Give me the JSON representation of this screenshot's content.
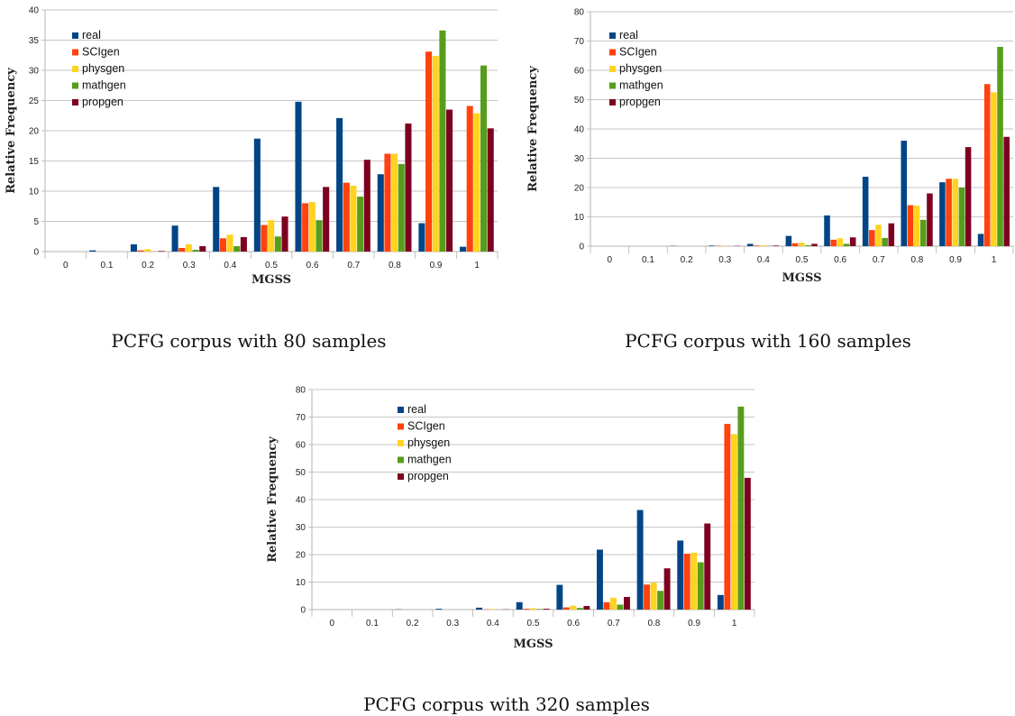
{
  "legend": [
    "real",
    "SCIgen",
    "physgen",
    "mathgen",
    "propgen"
  ],
  "colors": [
    "#004586",
    "#ff420e",
    "#ffd320",
    "#579d1c",
    "#7e0021"
  ],
  "chart_data": [
    {
      "type": "bar",
      "caption": "PCFG corpus with 80 samples",
      "xlabel": "MGSS",
      "ylabel": "Relative Frequency",
      "categories": [
        "0",
        "0.1",
        "0.2",
        "0.3",
        "0.4",
        "0.5",
        "0.6",
        "0.7",
        "0.8",
        "0.9",
        "1"
      ],
      "ylim": [
        0,
        40
      ],
      "yticks": [
        0,
        5,
        10,
        15,
        20,
        25,
        30,
        35,
        40
      ],
      "legend_position": "top-left",
      "series": [
        {
          "name": "real",
          "values": [
            0,
            0.2,
            1.2,
            4.3,
            10.7,
            18.7,
            24.8,
            22.1,
            12.8,
            4.7,
            0.8
          ]
        },
        {
          "name": "SCIgen",
          "values": [
            0,
            0,
            0.2,
            0.6,
            2.2,
            4.4,
            8.0,
            11.4,
            16.2,
            33.1,
            24.1
          ]
        },
        {
          "name": "physgen",
          "values": [
            0,
            0,
            0.4,
            1.2,
            2.8,
            5.2,
            8.2,
            10.9,
            16.2,
            32.4,
            22.9
          ]
        },
        {
          "name": "mathgen",
          "values": [
            0,
            0,
            0,
            0.3,
            0.9,
            2.5,
            5.2,
            9.1,
            14.5,
            36.6,
            30.8
          ]
        },
        {
          "name": "propgen",
          "values": [
            0,
            0,
            0.1,
            0.9,
            2.4,
            5.8,
            10.7,
            15.2,
            21.2,
            23.5,
            20.4
          ]
        }
      ]
    },
    {
      "type": "bar",
      "caption": "PCFG corpus with 160 samples",
      "xlabel": "MGSS",
      "ylabel": "Relative Frequency",
      "categories": [
        "0",
        "0.1",
        "0.2",
        "0.3",
        "0.4",
        "0.5",
        "0.6",
        "0.7",
        "0.8",
        "0.9",
        "1"
      ],
      "ylim": [
        0,
        80
      ],
      "yticks": [
        0,
        10,
        20,
        30,
        40,
        50,
        60,
        70,
        80
      ],
      "legend_position": "top-left",
      "series": [
        {
          "name": "real",
          "values": [
            0,
            0,
            0.1,
            0.2,
            0.8,
            3.5,
            10.5,
            23.7,
            36.0,
            21.8,
            4.2
          ]
        },
        {
          "name": "SCIgen",
          "values": [
            0,
            0,
            0,
            0.1,
            0.2,
            1.0,
            2.2,
            5.5,
            14.0,
            23.0,
            55.3
          ]
        },
        {
          "name": "physgen",
          "values": [
            0,
            0,
            0,
            0.1,
            0.3,
            1.2,
            2.7,
            7.3,
            13.8,
            23.0,
            52.5
          ]
        },
        {
          "name": "mathgen",
          "values": [
            0,
            0,
            0,
            0,
            0.1,
            0.3,
            0.8,
            2.8,
            9.0,
            20.0,
            68.0
          ]
        },
        {
          "name": "propgen",
          "values": [
            0,
            0,
            0,
            0.1,
            0.2,
            0.8,
            3.0,
            7.8,
            18.0,
            33.8,
            37.3
          ]
        }
      ]
    },
    {
      "type": "bar",
      "caption": "PCFG corpus with 320 samples",
      "xlabel": "MGSS",
      "ylabel": "Relative Frequency",
      "categories": [
        "0",
        "0.1",
        "0.2",
        "0.3",
        "0.4",
        "0.5",
        "0.6",
        "0.7",
        "0.8",
        "0.9",
        "1"
      ],
      "ylim": [
        0,
        80
      ],
      "yticks": [
        0,
        10,
        20,
        30,
        40,
        50,
        60,
        70,
        80
      ],
      "legend_position": "top-left",
      "series": [
        {
          "name": "real",
          "values": [
            0,
            0,
            0.1,
            0.3,
            0.7,
            2.7,
            9.0,
            21.8,
            36.2,
            25.1,
            5.3
          ]
        },
        {
          "name": "SCIgen",
          "values": [
            0,
            0,
            0,
            0,
            0.1,
            0.3,
            0.8,
            2.7,
            9.1,
            20.3,
            67.5
          ]
        },
        {
          "name": "physgen",
          "values": [
            0,
            0,
            0,
            0,
            0.2,
            0.5,
            1.4,
            4.3,
            9.8,
            20.7,
            63.8
          ]
        },
        {
          "name": "mathgen",
          "values": [
            0,
            0,
            0,
            0,
            0,
            0.2,
            0.6,
            1.8,
            6.8,
            17.2,
            73.8
          ]
        },
        {
          "name": "propgen",
          "values": [
            0,
            0,
            0,
            0,
            0.1,
            0.3,
            1.3,
            4.6,
            15.0,
            31.3,
            47.9
          ]
        }
      ]
    }
  ]
}
